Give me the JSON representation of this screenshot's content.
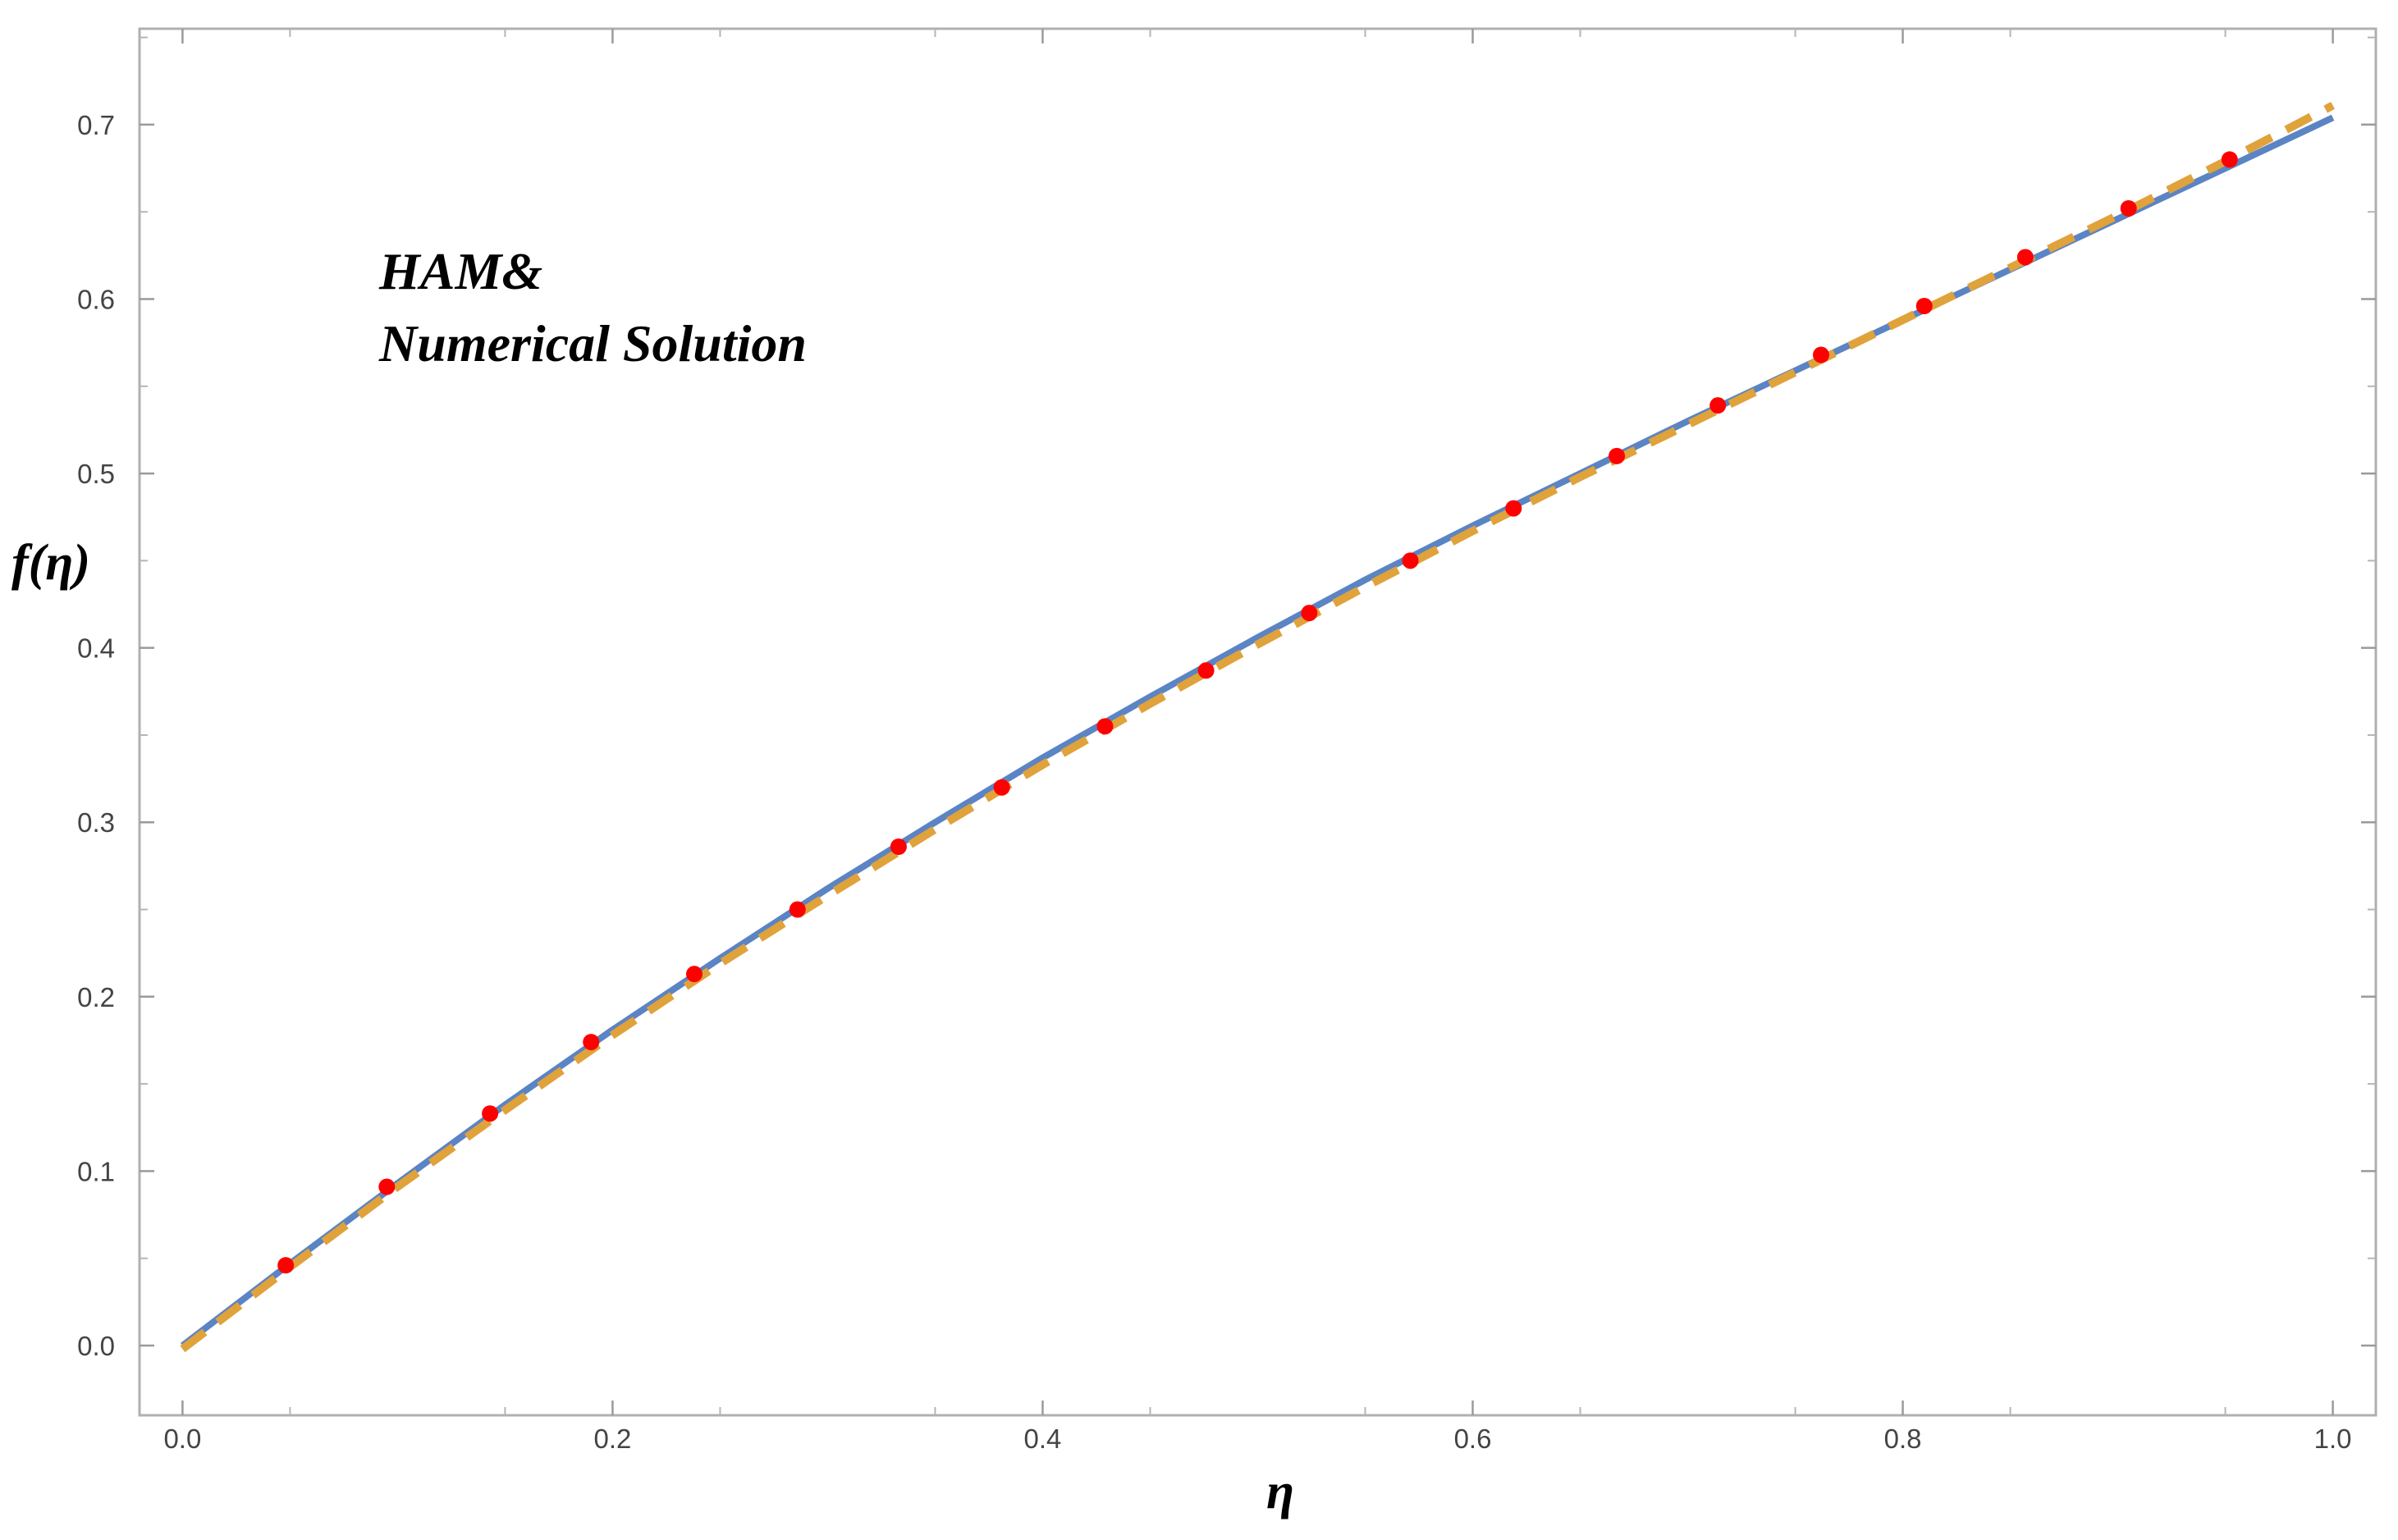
{
  "chart_data": {
    "type": "line",
    "xlabel": "η",
    "ylabel": "f(η)",
    "xlim": [
      -0.02,
      1.02
    ],
    "ylim": [
      -0.04,
      0.755
    ],
    "grid": false,
    "x_ticks": [
      {
        "value": 0.0,
        "label": "0.0"
      },
      {
        "value": 0.2,
        "label": "0.2"
      },
      {
        "value": 0.4,
        "label": "0.4"
      },
      {
        "value": 0.6,
        "label": "0.6"
      },
      {
        "value": 0.8,
        "label": "0.8"
      },
      {
        "value": 1.0,
        "label": "1.0"
      }
    ],
    "y_ticks": [
      {
        "value": 0.0,
        "label": "0.0"
      },
      {
        "value": 0.1,
        "label": "0.1"
      },
      {
        "value": 0.2,
        "label": "0.2"
      },
      {
        "value": 0.3,
        "label": "0.3"
      },
      {
        "value": 0.4,
        "label": "0.4"
      },
      {
        "value": 0.5,
        "label": "0.5"
      },
      {
        "value": 0.6,
        "label": "0.6"
      },
      {
        "value": 0.7,
        "label": "0.7"
      }
    ],
    "annotations": [
      "HAM&",
      "Numerical Solution"
    ],
    "series": [
      {
        "style": "solid",
        "color": "#5b84c4",
        "x": [
          0.0,
          0.05,
          0.1,
          0.15,
          0.2,
          0.25,
          0.3,
          0.35,
          0.4,
          0.45,
          0.5,
          0.55,
          0.6,
          0.65,
          0.7,
          0.75,
          0.8,
          0.85,
          0.9,
          0.95,
          1.0
        ],
        "y": [
          0.0,
          0.047,
          0.093,
          0.138,
          0.181,
          0.222,
          0.262,
          0.3,
          0.337,
          0.372,
          0.406,
          0.439,
          0.47,
          0.5,
          0.53,
          0.559,
          0.588,
          0.617,
          0.646,
          0.675,
          0.704
        ]
      },
      {
        "style": "dashed",
        "color": "#e0a23a",
        "x": [
          0.0,
          0.05,
          0.1,
          0.15,
          0.2,
          0.25,
          0.3,
          0.35,
          0.4,
          0.45,
          0.5,
          0.55,
          0.6,
          0.65,
          0.7,
          0.75,
          0.8,
          0.85,
          0.9,
          0.95,
          1.0
        ],
        "y": [
          -0.002,
          0.045,
          0.091,
          0.135,
          0.178,
          0.219,
          0.258,
          0.296,
          0.333,
          0.368,
          0.402,
          0.435,
          0.467,
          0.498,
          0.528,
          0.558,
          0.588,
          0.618,
          0.648,
          0.679,
          0.711
        ]
      },
      {
        "style": "points",
        "color": "#ff0000",
        "x": [
          0.048,
          0.095,
          0.143,
          0.19,
          0.238,
          0.286,
          0.333,
          0.381,
          0.429,
          0.476,
          0.524,
          0.571,
          0.619,
          0.667,
          0.714,
          0.762,
          0.81,
          0.857,
          0.905,
          0.952
        ],
        "y": [
          0.046,
          0.091,
          0.133,
          0.174,
          0.213,
          0.25,
          0.286,
          0.32,
          0.355,
          0.387,
          0.42,
          0.45,
          0.48,
          0.51,
          0.539,
          0.568,
          0.596,
          0.624,
          0.652,
          0.68
        ]
      }
    ]
  }
}
